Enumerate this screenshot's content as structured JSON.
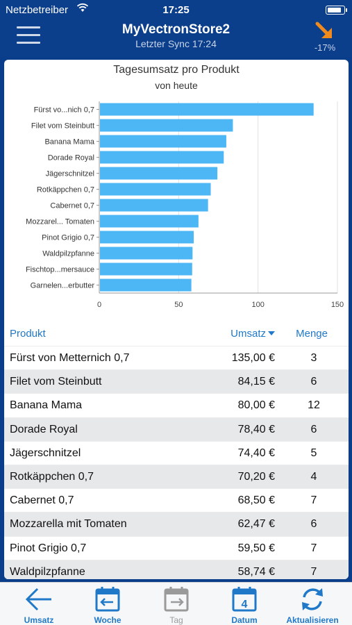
{
  "status": {
    "carrier": "Netzbetreiber",
    "time": "17:25",
    "battery_level": 0.9
  },
  "header": {
    "title": "MyVectronStore2",
    "subtitle": "Letzter Sync 17:24",
    "trend_pct": "-17%",
    "trend_icon": "trend-down-arrow-icon",
    "trend_color": "#f08a1c"
  },
  "chart_data": {
    "type": "bar",
    "orientation": "horizontal",
    "title": "Tagesumsatz pro Produkt",
    "subtitle": "von heute",
    "categories": [
      "Fürst vo...nich 0,7",
      "Filet vom Steinbutt",
      "Banana Mama",
      "Dorade Royal",
      "Jägerschnitzel",
      "Rotkäppchen 0,7",
      "Cabernet 0,7",
      "Mozzarel... Tomaten",
      "Pinot Grigio 0,7",
      "Waldpilzpfanne",
      "Fischtop...mersauce",
      "Garnelen...erbutter"
    ],
    "values": [
      135.0,
      84.15,
      80.0,
      78.4,
      74.4,
      70.2,
      68.5,
      62.47,
      59.5,
      58.74,
      58.5,
      58.0
    ],
    "xlim": [
      0,
      150
    ],
    "xticks": [
      "0",
      "50",
      "100",
      "150"
    ],
    "grid": true,
    "bar_color": "#4db6f5"
  },
  "table": {
    "headers": {
      "product": "Produkt",
      "revenue": "Umsatz",
      "quantity": "Menge"
    },
    "rows": [
      {
        "product": "Fürst von Metternich 0,7",
        "revenue": "135,00 €",
        "quantity": "3"
      },
      {
        "product": "Filet vom Steinbutt",
        "revenue": "84,15 €",
        "quantity": "6"
      },
      {
        "product": "Banana Mama",
        "revenue": "80,00 €",
        "quantity": "12"
      },
      {
        "product": "Dorade Royal",
        "revenue": "78,40 €",
        "quantity": "6"
      },
      {
        "product": "Jägerschnitzel",
        "revenue": "74,40 €",
        "quantity": "5"
      },
      {
        "product": "Rotkäppchen 0,7",
        "revenue": "70,20 €",
        "quantity": "4"
      },
      {
        "product": "Cabernet 0,7",
        "revenue": "68,50 €",
        "quantity": "7"
      },
      {
        "product": "Mozzarella mit Tomaten",
        "revenue": "62,47 €",
        "quantity": "6"
      },
      {
        "product": "Pinot Grigio 0,7",
        "revenue": "59,50 €",
        "quantity": "7"
      },
      {
        "product": "Waldpilzpfanne",
        "revenue": "58,74 €",
        "quantity": "7"
      }
    ]
  },
  "tabs": [
    {
      "label": "Umsatz",
      "icon": "back-arrow-icon"
    },
    {
      "label": "Woche",
      "icon": "calendar-week-icon"
    },
    {
      "label": "Tag",
      "icon": "calendar-day-icon"
    },
    {
      "label": "Datum",
      "icon": "calendar-date-icon",
      "date_number": "4"
    },
    {
      "label": "Aktualisieren",
      "icon": "refresh-icon"
    }
  ],
  "colors": {
    "header_bg": "#0c3f8b",
    "accent": "#1f78c8"
  }
}
